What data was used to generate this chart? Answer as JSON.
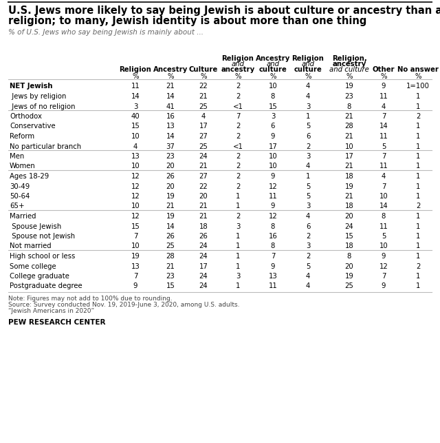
{
  "title_line1": "U.S. Jews more likely to say being Jewish is about culture or ancestry than about",
  "title_line2": "religion; to many, Jewish identity is about more than one thing",
  "subtitle": "% of U.S. Jews who say being Jewish is mainly about ...",
  "col_headers_bold": [
    "Religion",
    "Ancestry",
    "Culture",
    "Religion\nand\nancestry",
    "Ancestry\nand\nculture",
    "Religion\nand\nculture",
    "Religion,\nancestry\nand culture",
    "Other",
    "No answer"
  ],
  "row_labels": [
    "NET Jewish",
    " Jews by religion",
    " Jews of no religion",
    "Orthodox",
    "Conservative",
    "Reform",
    "No particular branch",
    "Men",
    "Women",
    "Ages 18-29",
    "30-49",
    "50-64",
    "65+",
    "Married",
    " Spouse Jewish",
    " Spouse not Jewish",
    "Not married",
    "High school or less",
    "Some college",
    "College graduate",
    "Postgraduate degree"
  ],
  "row_bold": [
    true,
    false,
    false,
    false,
    false,
    false,
    false,
    false,
    false,
    false,
    false,
    false,
    false,
    false,
    false,
    false,
    false,
    false,
    false,
    false,
    false
  ],
  "data": [
    [
      "11",
      "21",
      "22",
      "2",
      "10",
      "4",
      "19",
      "9",
      "1=100"
    ],
    [
      "14",
      "14",
      "21",
      "2",
      "8",
      "4",
      "23",
      "11",
      "1"
    ],
    [
      "3",
      "41",
      "25",
      "<1",
      "15",
      "3",
      "8",
      "4",
      "1"
    ],
    [
      "40",
      "16",
      "4",
      "7",
      "3",
      "1",
      "21",
      "7",
      "2"
    ],
    [
      "15",
      "13",
      "17",
      "2",
      "6",
      "5",
      "28",
      "14",
      "1"
    ],
    [
      "10",
      "14",
      "27",
      "2",
      "9",
      "6",
      "21",
      "11",
      "1"
    ],
    [
      "4",
      "37",
      "25",
      "<1",
      "17",
      "2",
      "10",
      "5",
      "1"
    ],
    [
      "13",
      "23",
      "24",
      "2",
      "10",
      "3",
      "17",
      "7",
      "1"
    ],
    [
      "10",
      "20",
      "21",
      "2",
      "10",
      "4",
      "21",
      "11",
      "1"
    ],
    [
      "12",
      "26",
      "27",
      "2",
      "9",
      "1",
      "18",
      "4",
      "1"
    ],
    [
      "12",
      "20",
      "22",
      "2",
      "12",
      "5",
      "19",
      "7",
      "1"
    ],
    [
      "12",
      "19",
      "20",
      "1",
      "11",
      "5",
      "21",
      "10",
      "1"
    ],
    [
      "10",
      "21",
      "21",
      "1",
      "9",
      "3",
      "18",
      "14",
      "2"
    ],
    [
      "12",
      "19",
      "21",
      "2",
      "12",
      "4",
      "20",
      "8",
      "1"
    ],
    [
      "15",
      "14",
      "18",
      "3",
      "8",
      "6",
      "24",
      "11",
      "1"
    ],
    [
      "7",
      "26",
      "26",
      "1",
      "16",
      "2",
      "15",
      "5",
      "1"
    ],
    [
      "10",
      "25",
      "24",
      "1",
      "8",
      "3",
      "18",
      "10",
      "1"
    ],
    [
      "19",
      "28",
      "24",
      "1",
      "7",
      "2",
      "8",
      "9",
      "1"
    ],
    [
      "13",
      "21",
      "17",
      "1",
      "9",
      "5",
      "20",
      "12",
      "2"
    ],
    [
      "7",
      "23",
      "24",
      "3",
      "13",
      "4",
      "19",
      "7",
      "1"
    ],
    [
      "9",
      "15",
      "24",
      "1",
      "11",
      "4",
      "25",
      "9",
      "1"
    ]
  ],
  "separator_before_rows": [
    3,
    7,
    9,
    13,
    17
  ],
  "note_lines": [
    "Note: Figures may not add to 100% due to rounding.",
    "Source: Survey conducted Nov. 19, 2019-June 3, 2020, among U.S. adults.",
    "“Jewish Americans in 2020”"
  ],
  "footer": "PEW RESEARCH CENTER",
  "bg_color": "#ffffff",
  "line_color": "#bbbbbb",
  "text_color": "#000000",
  "subtitle_color": "#666666"
}
